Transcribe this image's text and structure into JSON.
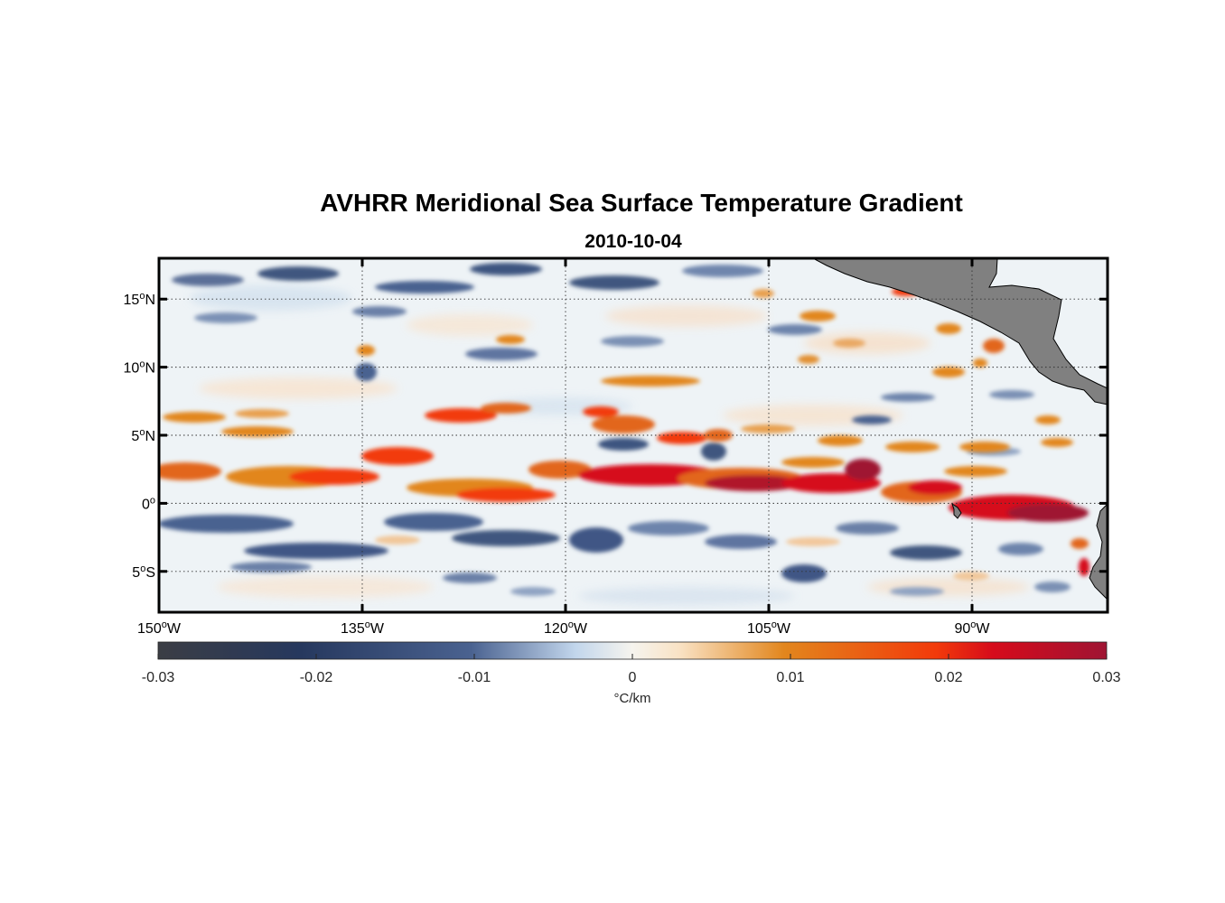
{
  "chart_data": {
    "type": "heatmap",
    "title": "AVHRR Meridional Sea Surface Temperature Gradient",
    "subtitle": "2010-10-04",
    "variable": "Meridional SST gradient",
    "units": "°C/km",
    "lon_range": [
      -150,
      -80
    ],
    "lat_range": [
      -8,
      18
    ],
    "lon_ticks": [
      {
        "value": -150,
        "deg": "150",
        "hemi": "W"
      },
      {
        "value": -135,
        "deg": "135",
        "hemi": "W"
      },
      {
        "value": -120,
        "deg": "120",
        "hemi": "W"
      },
      {
        "value": -105,
        "deg": "105",
        "hemi": "W"
      },
      {
        "value": -90,
        "deg": "90",
        "hemi": "W"
      }
    ],
    "lat_ticks": [
      {
        "value": 15,
        "deg": "15",
        "hemi": "N"
      },
      {
        "value": 10,
        "deg": "10",
        "hemi": "N"
      },
      {
        "value": 5,
        "deg": "5",
        "hemi": "N"
      },
      {
        "value": 0,
        "deg": "0",
        "hemi": ""
      },
      {
        "value": -5,
        "deg": "5",
        "hemi": "S"
      }
    ],
    "grid": true,
    "colorbar": {
      "range": [
        -0.03,
        0.03
      ],
      "ticks": [
        {
          "value": -0.03,
          "label": "-0.03"
        },
        {
          "value": -0.02,
          "label": "-0.02"
        },
        {
          "value": -0.01,
          "label": "-0.01"
        },
        {
          "value": 0,
          "label": "0"
        },
        {
          "value": 0.01,
          "label": "0.01"
        },
        {
          "value": 0.02,
          "label": "0.02"
        },
        {
          "value": 0.03,
          "label": "0.03"
        }
      ],
      "label": "°C/km",
      "placement": "bottom",
      "colors": [
        "#3b3d44",
        "#26385e",
        "#4a6290",
        "#c2d6ec",
        "#f6f4ee",
        "#f9e2c4",
        "#e2861d",
        "#f23a0a",
        "#d60b1b",
        "#9f1433"
      ]
    },
    "features": {
      "positive_bands": [
        {
          "lon": [
            -150,
            -136
          ],
          "lat_center": 1.5,
          "strength": 0.018
        },
        {
          "lon": [
            -140,
            -128
          ],
          "lat_center": 2.5,
          "strength": 0.02
        },
        {
          "lon": [
            -128,
            -113
          ],
          "lat_center": 0.5,
          "strength": 0.021
        },
        {
          "lon": [
            -120,
            -96
          ],
          "lat_center": 1.5,
          "strength": 0.027
        },
        {
          "lon": [
            -96,
            -80
          ],
          "lat_center": -0.5,
          "strength": 0.029
        },
        {
          "lon": [
            -128,
            -118
          ],
          "lat_center": 6.5,
          "strength": 0.016
        },
        {
          "lon": [
            -118,
            -108
          ],
          "lat_center": 9.0,
          "strength": 0.013
        }
      ],
      "negative_bands": [
        {
          "lon": [
            -150,
            -135
          ],
          "lat_center": -2.0,
          "strength": -0.014
        },
        {
          "lon": [
            -135,
            -120
          ],
          "lat_center": -3.0,
          "strength": -0.015
        },
        {
          "lon": [
            -120,
            -98
          ],
          "lat_center": -4.0,
          "strength": -0.012
        },
        {
          "lon": [
            -150,
            -120
          ],
          "lat_center": 16.5,
          "strength": -0.012
        }
      ],
      "land_color": "#808080",
      "land": [
        "Central America",
        "South America coast",
        "Galapagos Islands"
      ]
    }
  }
}
